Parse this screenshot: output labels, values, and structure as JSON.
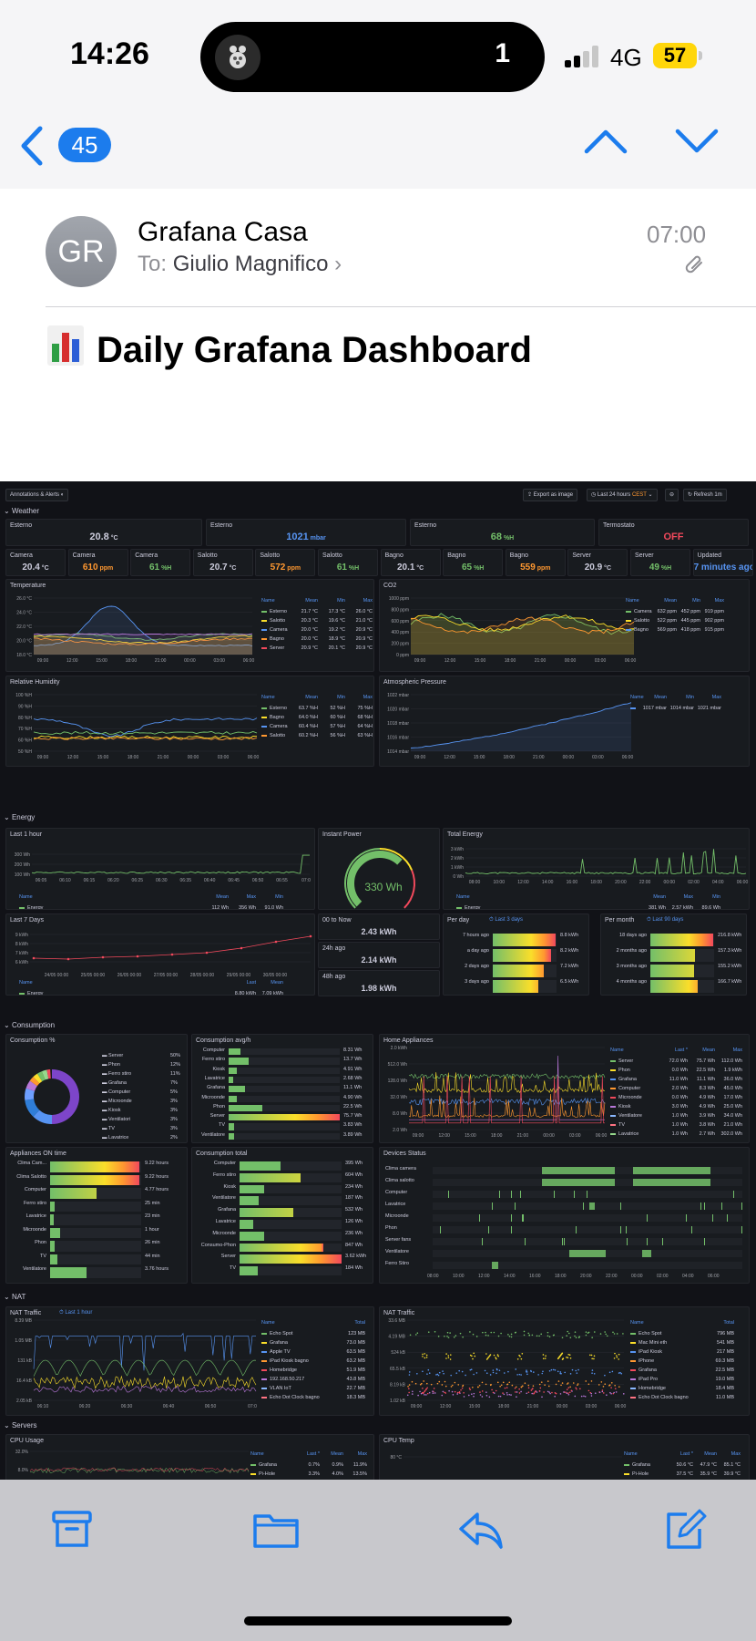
{
  "status": {
    "time": "14:26",
    "island_count": "1",
    "network": "4G",
    "battery": "57"
  },
  "nav": {
    "unread_count": "45"
  },
  "message": {
    "avatar_initials": "GR",
    "sender": "Grafana Casa",
    "to_label": "To:",
    "recipient": "Giulio Magnifico",
    "time": "07:00",
    "subject_emoji": "📊",
    "subject": "Daily Grafana Dashboard"
  },
  "dashboard": {
    "toolbar": {
      "annotations": "Annotations & Alerts",
      "export": "Export as image",
      "range": "Last 24 hours",
      "tz": "CEST",
      "refresh": "Refresh",
      "interval": "1m"
    },
    "rows": {
      "weather": "Weather",
      "energy": "Energy",
      "consumption": "Consumption",
      "nat": "NAT",
      "servers": "Servers"
    },
    "weather_top": [
      {
        "title": "Esterno",
        "value": "20.8",
        "unit": "°C",
        "color": "#ccccdc"
      },
      {
        "title": "Esterno",
        "value": "1021",
        "unit": "mbar",
        "color": "#5794f2"
      },
      {
        "title": "Esterno",
        "value": "68",
        "unit": "%H",
        "color": "#73bf69"
      },
      {
        "title": "Termostato",
        "value": "OFF",
        "unit": "",
        "color": "#f2495c"
      }
    ],
    "weather_stats": [
      {
        "title": "Camera",
        "value": "20.4",
        "unit": "°C",
        "color": "#ccccdc"
      },
      {
        "title": "Camera",
        "value": "610",
        "unit": "ppm",
        "color": "#ff9830"
      },
      {
        "title": "Camera",
        "value": "61",
        "unit": "%H",
        "color": "#73bf69"
      },
      {
        "title": "Salotto",
        "value": "20.7",
        "unit": "°C",
        "color": "#ccccdc"
      },
      {
        "title": "Salotto",
        "value": "572",
        "unit": "ppm",
        "color": "#ff9830"
      },
      {
        "title": "Salotto",
        "value": "61",
        "unit": "%H",
        "color": "#73bf69"
      },
      {
        "title": "Bagno",
        "value": "20.1",
        "unit": "°C",
        "color": "#ccccdc"
      },
      {
        "title": "Bagno",
        "value": "65",
        "unit": "%H",
        "color": "#73bf69"
      },
      {
        "title": "Bagno",
        "value": "559",
        "unit": "ppm",
        "color": "#ff9830"
      },
      {
        "title": "Server",
        "value": "20.9",
        "unit": "°C",
        "color": "#ccccdc"
      },
      {
        "title": "Server",
        "value": "49",
        "unit": "%H",
        "color": "#73bf69"
      },
      {
        "title": "Updated",
        "value": "7 minutes ago",
        "unit": "",
        "color": "#5794f2"
      }
    ],
    "temperature": {
      "title": "Temperature",
      "yticks": [
        "26.0 °C",
        "24.0 °C",
        "22.0 °C",
        "20.0 °C",
        "18.0 °C"
      ],
      "xticks": [
        "09:00",
        "12:00",
        "15:00",
        "18:00",
        "21:00",
        "00:00",
        "03:00",
        "06:00"
      ],
      "legend_head": [
        "Name",
        "Mean",
        "Min",
        "Max"
      ],
      "legend": [
        [
          "Esterno",
          "21.7 °C",
          "17.3 °C",
          "26.0 °C"
        ],
        [
          "Salotto",
          "20.3 °C",
          "19.6 °C",
          "21.0 °C"
        ],
        [
          "Camera",
          "20.0 °C",
          "19.2 °C",
          "20.9 °C"
        ],
        [
          "Bagno",
          "20.0 °C",
          "18.9 °C",
          "20.9 °C"
        ],
        [
          "Server",
          "20.9 °C",
          "20.1 °C",
          "20.9 °C"
        ]
      ]
    },
    "co2": {
      "title": "CO2",
      "yticks": [
        "1000 ppm",
        "800 ppm",
        "600 ppm",
        "400 ppm",
        "200 ppm",
        "0 ppm"
      ],
      "xticks": [
        "09:00",
        "12:00",
        "15:00",
        "18:00",
        "21:00",
        "00:00",
        "03:00",
        "06:00"
      ],
      "legend_head": [
        "Name",
        "Mean",
        "Min",
        "Max"
      ],
      "legend": [
        [
          "Camera",
          "632 ppm",
          "452 ppm",
          "919 ppm"
        ],
        [
          "Salotto",
          "522 ppm",
          "445 ppm",
          "902 ppm"
        ],
        [
          "Bagno",
          "569 ppm",
          "418 ppm",
          "915 ppm"
        ]
      ]
    },
    "humidity": {
      "title": "Relative Humidity",
      "yticks": [
        "100 %H",
        "90 %H",
        "80 %H",
        "70 %H",
        "60 %H",
        "50 %H"
      ],
      "xticks": [
        "09:00",
        "12:00",
        "15:00",
        "18:00",
        "21:00",
        "00:00",
        "03:00",
        "06:00"
      ],
      "legend_head": [
        "Name",
        "Mean",
        "Min",
        "Max"
      ],
      "legend": [
        [
          "Esterno",
          "63.7 %H",
          "52 %H",
          "75 %H"
        ],
        [
          "Bagno",
          "64.0 %H",
          "60 %H",
          "68 %H"
        ],
        [
          "Camera",
          "60.4 %H",
          "57 %H",
          "64 %H"
        ],
        [
          "Salotto",
          "60.2 %H",
          "56 %H",
          "63 %H"
        ]
      ]
    },
    "pressure": {
      "title": "Atmospheric Pressure",
      "yticks": [
        "1022 mbar",
        "1020 mbar",
        "1018 mbar",
        "1016 mbar",
        "1014 mbar"
      ],
      "xticks": [
        "09:00",
        "12:00",
        "15:00",
        "18:00",
        "21:00",
        "00:00",
        "03:00",
        "06:00"
      ],
      "legend_head": [
        "Name",
        "Mean",
        "Min",
        "Max"
      ],
      "legend": [
        [
          "",
          "1017 mbar",
          "1014 mbar",
          "1021 mbar"
        ]
      ]
    },
    "last_hour": {
      "title": "Last 1 hour",
      "yticks": [
        "300 Wh",
        "200 Wh",
        "100 Wh"
      ],
      "xticks": [
        "06:05",
        "06:10",
        "06:15",
        "06:20",
        "06:25",
        "06:30",
        "06:35",
        "06:40",
        "06:45",
        "06:50",
        "06:55",
        "07:0"
      ],
      "legend_head": [
        "Name",
        "Mean",
        "Max",
        "Min"
      ],
      "legend": [
        [
          "Energy",
          "112 Wh",
          "356 Wh",
          "91.0 Wh"
        ]
      ]
    },
    "instant_power": {
      "title": "Instant Power",
      "value": "330 Wh",
      "fraction": 0.66
    },
    "total_energy": {
      "title": "Total Energy",
      "yticks": [
        "3 kWh",
        "2 kWh",
        "1 kWh",
        "0 Wh"
      ],
      "xticks": [
        "08:00",
        "10:00",
        "12:00",
        "14:00",
        "16:00",
        "18:00",
        "20:00",
        "22:00",
        "00:00",
        "02:00",
        "04:00",
        "06:00"
      ],
      "legend_head": [
        "Name",
        "Mean",
        "Max",
        "Min"
      ],
      "legend": [
        [
          "Energy",
          "381 Wh",
          "2.57 kWh",
          "89.6 Wh"
        ]
      ]
    },
    "last7": {
      "title": "Last 7 Days",
      "yticks": [
        "9 kWh",
        "8 kWh",
        "7 kWh",
        "6 kWh"
      ],
      "xticks": [
        "24/05 00:00",
        "25/05 00:00",
        "26/05 00:00",
        "27/05 00:00",
        "28/05 00:00",
        "29/05 00:00",
        "30/05 00:00"
      ],
      "legend_head": [
        "Name",
        "Last",
        "Mean"
      ],
      "legend": [
        [
          "Energy",
          "8.80 kWh",
          "7.09 kWh"
        ]
      ]
    },
    "to_now": [
      {
        "title": "00 to Now",
        "value": "2.43 kWh"
      },
      {
        "title": "24h ago",
        "value": "2.14 kWh"
      },
      {
        "title": "48h ago",
        "value": "1.98 kWh"
      }
    ],
    "per_day": {
      "title": "Per day",
      "link": "Last 3 days",
      "items": [
        {
          "label": "7 hours ago",
          "value": "8.8 kWh",
          "frac": 0.98
        },
        {
          "label": "a day ago",
          "value": "8.2 kWh",
          "frac": 0.91
        },
        {
          "label": "2 days ago",
          "value": "7.2 kWh",
          "frac": 0.8
        },
        {
          "label": "3 days ago",
          "value": "6.5 kWh",
          "frac": 0.72
        }
      ]
    },
    "per_month": {
      "title": "Per month",
      "link": "Last 90 days",
      "items": [
        {
          "label": "18 days ago",
          "value": "216.8 kWh",
          "frac": 0.98
        },
        {
          "label": "2 months ago",
          "value": "157.3 kWh",
          "frac": 0.7
        },
        {
          "label": "3 months ago",
          "value": "155.2 kWh",
          "frac": 0.69
        },
        {
          "label": "4 months ago",
          "value": "166.7 kWh",
          "frac": 0.74
        }
      ]
    },
    "consumption_pct": {
      "title": "Consumption %",
      "items": [
        [
          "Server",
          "50%"
        ],
        [
          "Phon",
          "12%"
        ],
        [
          "Ferro stiro",
          "11%"
        ],
        [
          "Grafana",
          "7%"
        ],
        [
          "Computer",
          "5%"
        ],
        [
          "Microonde",
          "3%"
        ],
        [
          "Kiosk",
          "3%"
        ],
        [
          "Ventilatori",
          "3%"
        ],
        [
          "TV",
          "3%"
        ],
        [
          "Lavatrice",
          "2%"
        ]
      ]
    },
    "consumption_avg": {
      "title": "Consumption avg/h",
      "items": [
        [
          "Computer",
          "8.31 Wh",
          0.11
        ],
        [
          "Ferro stiro",
          "13.7 Wh",
          0.18
        ],
        [
          "Kiosk",
          "4.91 Wh",
          0.07
        ],
        [
          "Lavatrice",
          "2.68 Wh",
          0.04
        ],
        [
          "Grafana",
          "11.1 Wh",
          0.15
        ],
        [
          "Microonde",
          "4.90 Wh",
          0.07
        ],
        [
          "Phon",
          "22.5 Wh",
          0.3
        ],
        [
          "Server",
          "75.7 Wh",
          1.0
        ],
        [
          "TV",
          "3.83 Wh",
          0.05
        ],
        [
          "Ventilatore",
          "3.89 Wh",
          0.05
        ]
      ]
    },
    "home_appliances": {
      "title": "Home Appliances",
      "yticks": [
        "2.0 kWh",
        "512.0 Wh",
        "128.0 Wh",
        "32.0 Wh",
        "8.0 Wh",
        "2.0 Wh"
      ],
      "xticks": [
        "09:00",
        "12:00",
        "15:00",
        "18:00",
        "21:00",
        "00:00",
        "03:00",
        "06:00"
      ],
      "legend_head": [
        "Name",
        "Last *",
        "Mean",
        "Max"
      ],
      "legend": [
        [
          "Server",
          "72.0 Wh",
          "75.7 Wh",
          "112.0 Wh"
        ],
        [
          "Phon",
          "0.0 Wh",
          "22.5 Wh",
          "1.9 kWh"
        ],
        [
          "Grafana",
          "11.0 Wh",
          "11.1 Wh",
          "36.0 Wh"
        ],
        [
          "Computer",
          "2.0 Wh",
          "8.3 Wh",
          "45.0 Wh"
        ],
        [
          "Microonde",
          "0.0 Wh",
          "4.9 Wh",
          "17.0 Wh"
        ],
        [
          "Kiosk",
          "3.0 Wh",
          "4.9 Wh",
          "25.0 Wh"
        ],
        [
          "Ventilatore",
          "1.0 Wh",
          "3.9 Wh",
          "34.0 Wh"
        ],
        [
          "TV",
          "1.0 Wh",
          "3.8 Wh",
          "21.0 Wh"
        ],
        [
          "Lavatrice",
          "1.0 Wh",
          "2.7 Wh",
          "302.0 Wh"
        ]
      ]
    },
    "appliances_on": {
      "title": "Appliances ON time",
      "items": [
        [
          "Clima Cam...",
          "9.22 hours",
          0.98
        ],
        [
          "Clima Salotto",
          "9.22 hours",
          0.98
        ],
        [
          "Computer",
          "4.77 hours",
          0.51
        ],
        [
          "Ferro stiro",
          "25 min",
          0.05
        ],
        [
          "Lavatrice",
          "23 min",
          0.04
        ],
        [
          "Microonde",
          "1 hour",
          0.11
        ],
        [
          "Phon",
          "26 min",
          0.05
        ],
        [
          "TV",
          "44 min",
          0.08
        ],
        [
          "Ventilatore",
          "3.76 hours",
          0.4
        ]
      ]
    },
    "consumption_total": {
      "title": "Consumption total",
      "items": [
        [
          "Computer",
          "395 Wh",
          0.4
        ],
        [
          "Ferro stiro",
          "604 Wh",
          0.6
        ],
        [
          "Kiosk",
          "234 Wh",
          0.24
        ],
        [
          "Ventilatore",
          "187 Wh",
          0.19
        ],
        [
          "Grafana",
          "532 Wh",
          0.53
        ],
        [
          "Lavatrice",
          "126 Wh",
          0.13
        ],
        [
          "Microonde",
          "236 Wh",
          0.24
        ],
        [
          "Consumo-Phon",
          "847 Wh",
          0.82
        ],
        [
          "Server",
          "3.62 kWh",
          1.0
        ],
        [
          "TV",
          "184 Wh",
          0.18
        ]
      ]
    },
    "devices_status": {
      "title": "Devices Status",
      "items": [
        "Clima camera",
        "Clima salotto",
        "Computer",
        "Lavatrice",
        "Microonde",
        "Phon",
        "Server fans",
        "Ventilatore",
        "Ferro Stiro"
      ],
      "xticks": [
        "08:00",
        "10:00",
        "12:00",
        "14:00",
        "16:00",
        "18:00",
        "20:00",
        "22:00",
        "00:00",
        "02:00",
        "04:00",
        "06:00"
      ]
    },
    "nat1": {
      "title": "NAT Traffic",
      "link": "Last 1 hour",
      "yticks": [
        "8.39 MB",
        "1.05 MB",
        "131 kB",
        "16.4 kB",
        "2.05 kB"
      ],
      "xticks": [
        "06:10",
        "06:20",
        "06:30",
        "06:40",
        "06:50",
        "07:0"
      ],
      "legend_head": [
        "Name",
        "Total"
      ],
      "legend": [
        [
          "Echo Spot",
          "123 MB"
        ],
        [
          "Grafana",
          "73.0 MB"
        ],
        [
          "Apple TV",
          "63.5 MB"
        ],
        [
          "iPad Kiosk bagno",
          "63.2 MB"
        ],
        [
          "Homebridge",
          "51.9 MB"
        ],
        [
          "192.168.50.217",
          "43.8 MB"
        ],
        [
          "VLAN IoT",
          "22.7 MB"
        ],
        [
          "Echo Dot Clock bagno",
          "18.3 MB"
        ]
      ]
    },
    "nat2": {
      "title": "NAT Traffic",
      "yticks": [
        "33.6 MB",
        "4.19 MB",
        "524 kB",
        "65.5 kB",
        "8.19 kB",
        "1.02 kB"
      ],
      "xticks": [
        "09:00",
        "12:00",
        "15:00",
        "18:00",
        "21:00",
        "00:00",
        "03:00",
        "06:00"
      ],
      "legend_head": [
        "Name",
        "Total"
      ],
      "legend": [
        [
          "Echo Spot",
          "796 MB"
        ],
        [
          "Mac Mini eth",
          "541 MB"
        ],
        [
          "iPad Kiosk",
          "217 MB"
        ],
        [
          "iPhone",
          "69.3 MB"
        ],
        [
          "Grafana",
          "22.5 MB"
        ],
        [
          "iPad Pro",
          "19.0 MB"
        ],
        [
          "Homebridge",
          "18.4 MB"
        ],
        [
          "Echo Dot Clock bagno",
          "11.0 MB"
        ]
      ]
    },
    "cpu_usage": {
      "title": "CPU Usage",
      "yticks": [
        "32.0%",
        "8.0%"
      ],
      "legend_head": [
        "Name",
        "Last *",
        "Mean",
        "Max"
      ],
      "legend": [
        [
          "Grafana",
          "0.7%",
          "0.9%",
          "11.9%"
        ],
        [
          "Pi-Hole",
          "3.3%",
          "4.0%",
          "13.5%"
        ]
      ]
    },
    "cpu_temp": {
      "title": "CPU Temp",
      "yticks": [
        "80 °C"
      ],
      "legend_head": [
        "Name",
        "Last *",
        "Mean",
        "Max"
      ],
      "legend": [
        [
          "Grafana",
          "50.6 °C",
          "47.9 °C",
          "85.1 °C"
        ],
        [
          "Pi-Hole",
          "37.5 °C",
          "35.9 °C",
          "39.9 °C"
        ]
      ]
    }
  },
  "colors": {
    "accent": "#1c7ced",
    "grafana_bg": "#111217",
    "panel_bg": "#181b1f",
    "green": "#73bf69",
    "yellow": "#fade2a",
    "orange": "#ff9830",
    "red": "#f2495c",
    "blue": "#5794f2",
    "purple": "#b877d9"
  },
  "toolbar_icons": [
    "archive-icon",
    "folder-icon",
    "reply-icon",
    "compose-icon"
  ]
}
